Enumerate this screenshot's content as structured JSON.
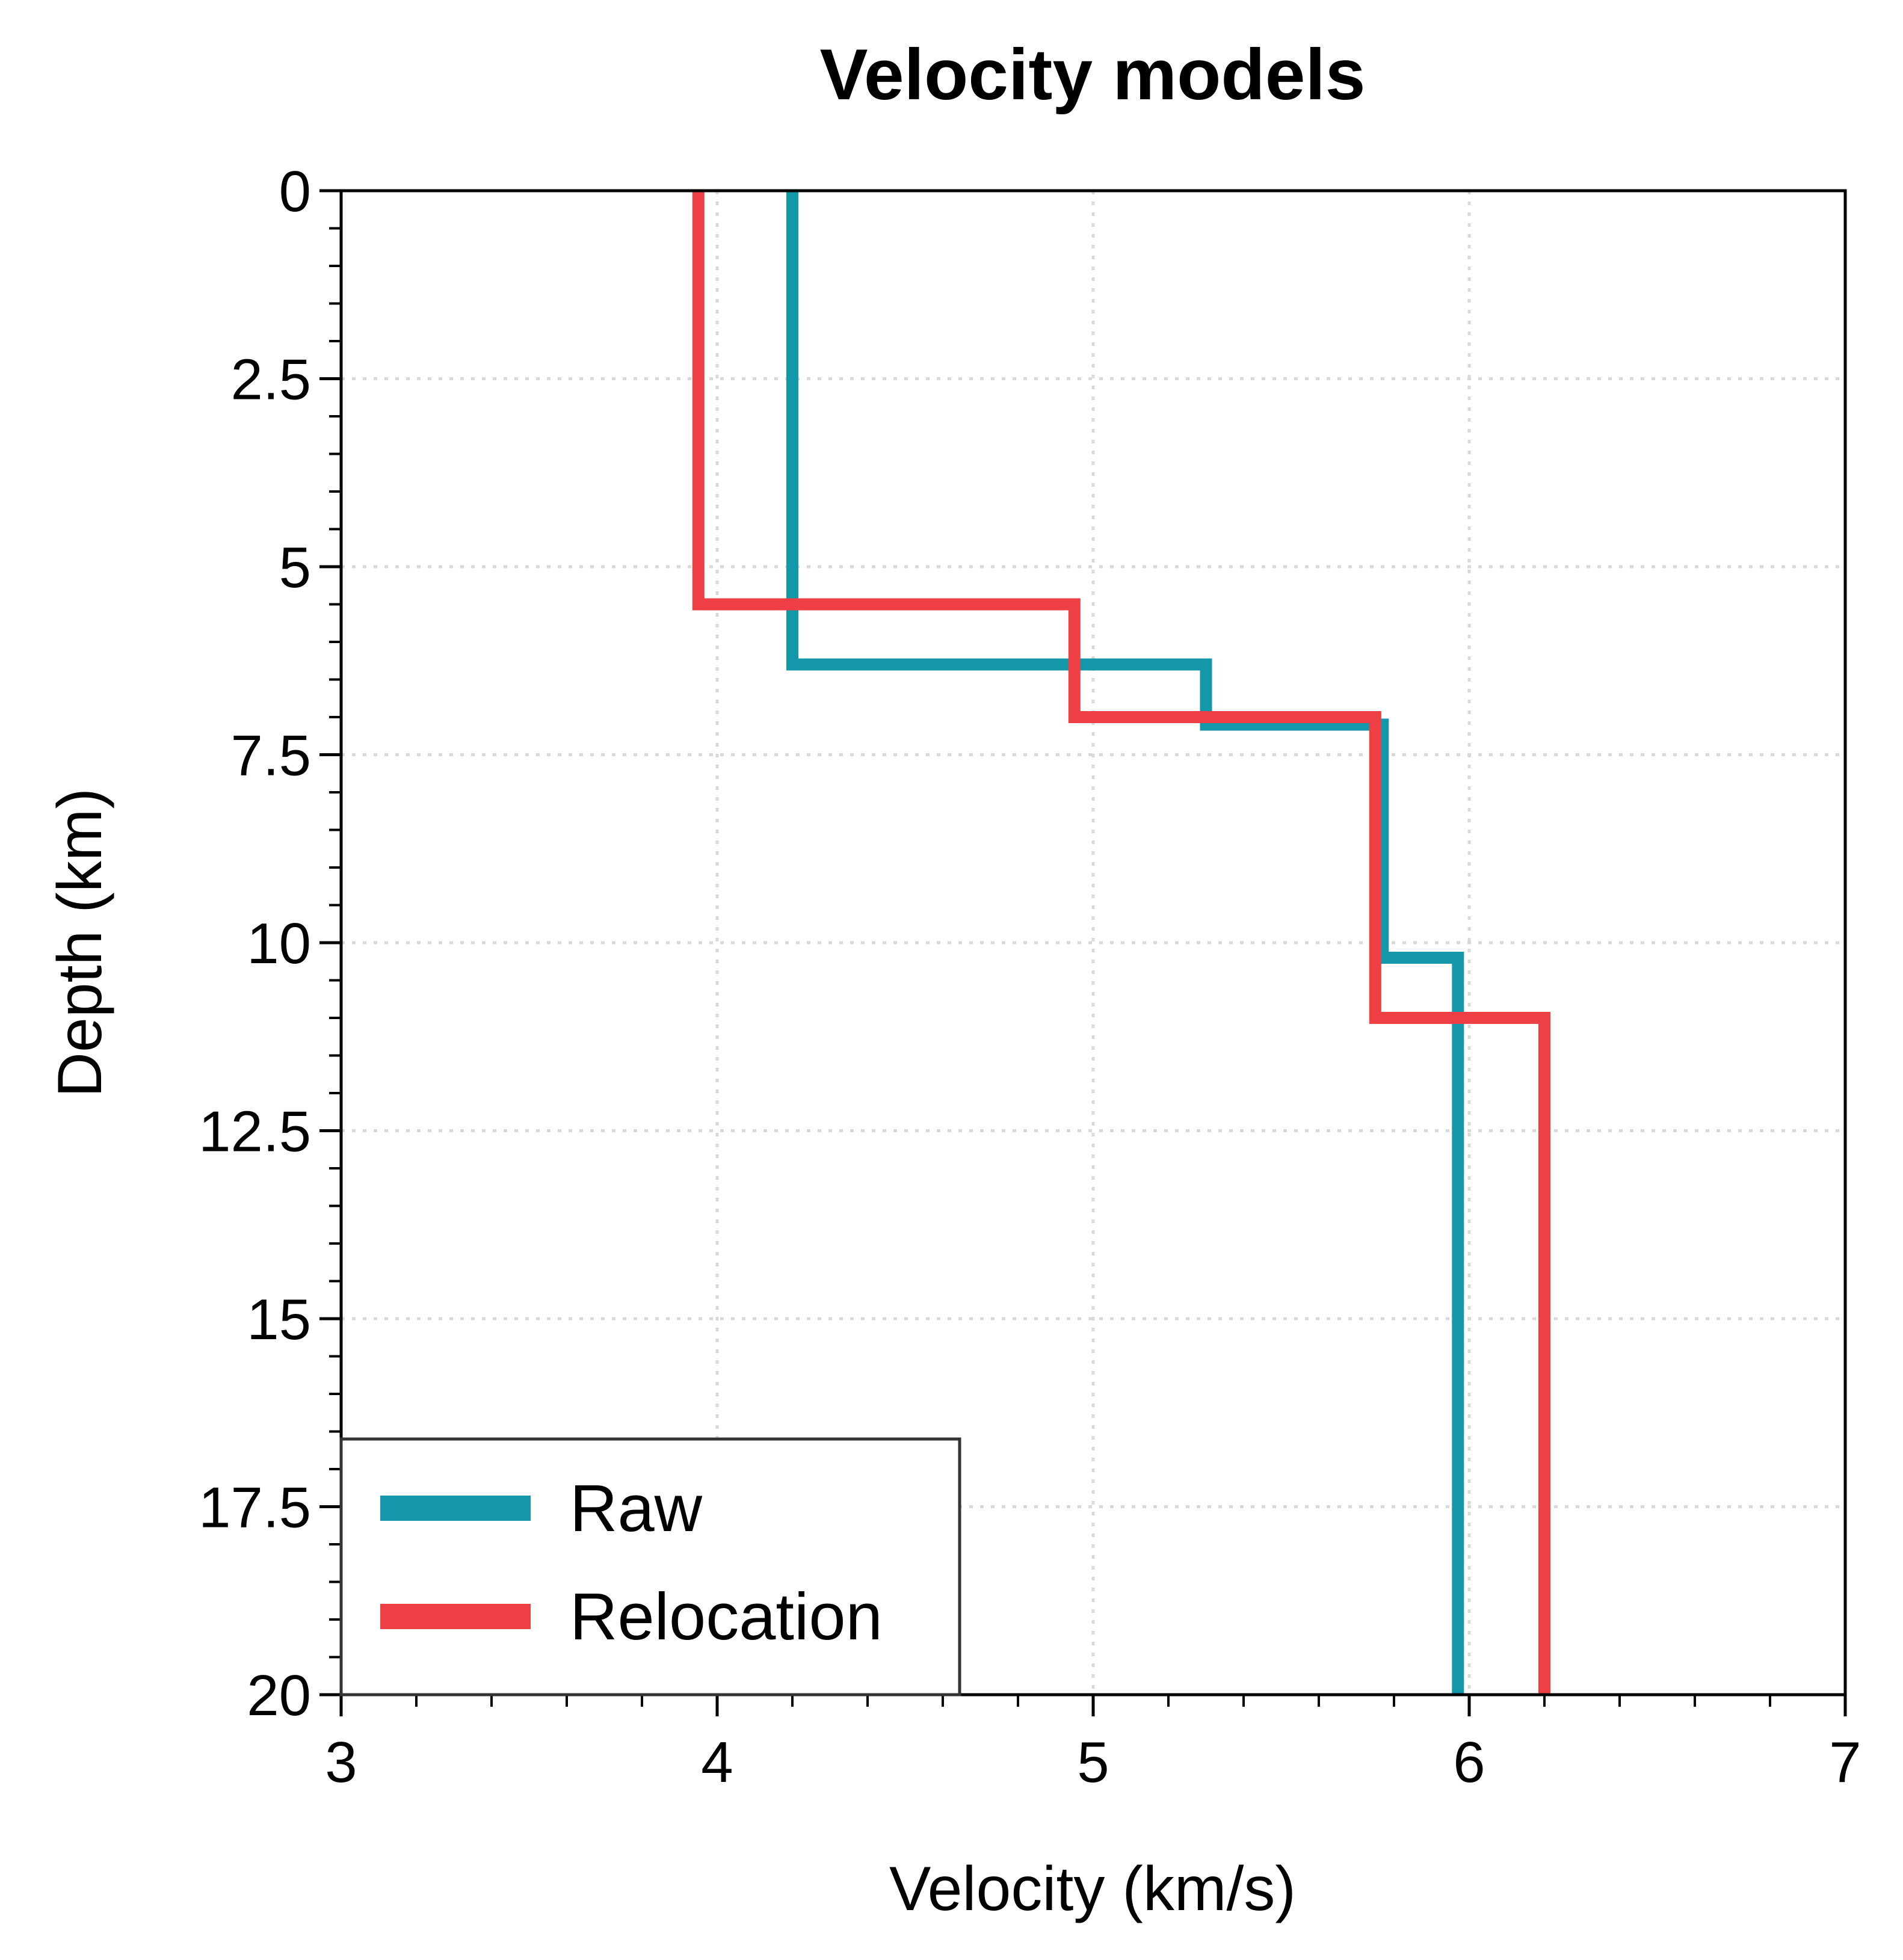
{
  "chart_data": {
    "type": "line",
    "title": "Velocity models",
    "xlabel": "Velocity (km/s)",
    "ylabel": "Depth (km)",
    "xlim": [
      3,
      7
    ],
    "ylim": [
      0,
      20
    ],
    "y_inverted": true,
    "x_ticks": [
      3,
      4,
      5,
      6,
      7
    ],
    "x_tick_labels": [
      "3",
      "4",
      "5",
      "6",
      "7"
    ],
    "y_ticks": [
      0,
      2.5,
      5,
      7.5,
      10,
      12.5,
      15,
      17.5,
      20
    ],
    "y_tick_labels": [
      "0",
      "2.5",
      "5",
      "7.5",
      "10",
      "12.5",
      "15",
      "17.5",
      "20"
    ],
    "x_minor_step": 0.2,
    "y_minor_step": 0.5,
    "grid": true,
    "grid_style": "dotted",
    "legend_position": "bottom-left",
    "series": [
      {
        "name": "Raw",
        "color": "#1497a9",
        "x": [
          4.2,
          4.2,
          5.3,
          5.3,
          5.77,
          5.77,
          5.97,
          5.97
        ],
        "y": [
          0,
          6.3,
          6.3,
          7.1,
          7.1,
          10.2,
          10.2,
          20
        ]
      },
      {
        "name": "Relocation",
        "color": "#ee4044",
        "x": [
          3.95,
          3.95,
          4.95,
          4.95,
          5.75,
          5.75,
          6.2,
          6.2
        ],
        "y": [
          0,
          5.5,
          5.5,
          7.0,
          7.0,
          11.0,
          11.0,
          20
        ]
      }
    ]
  }
}
